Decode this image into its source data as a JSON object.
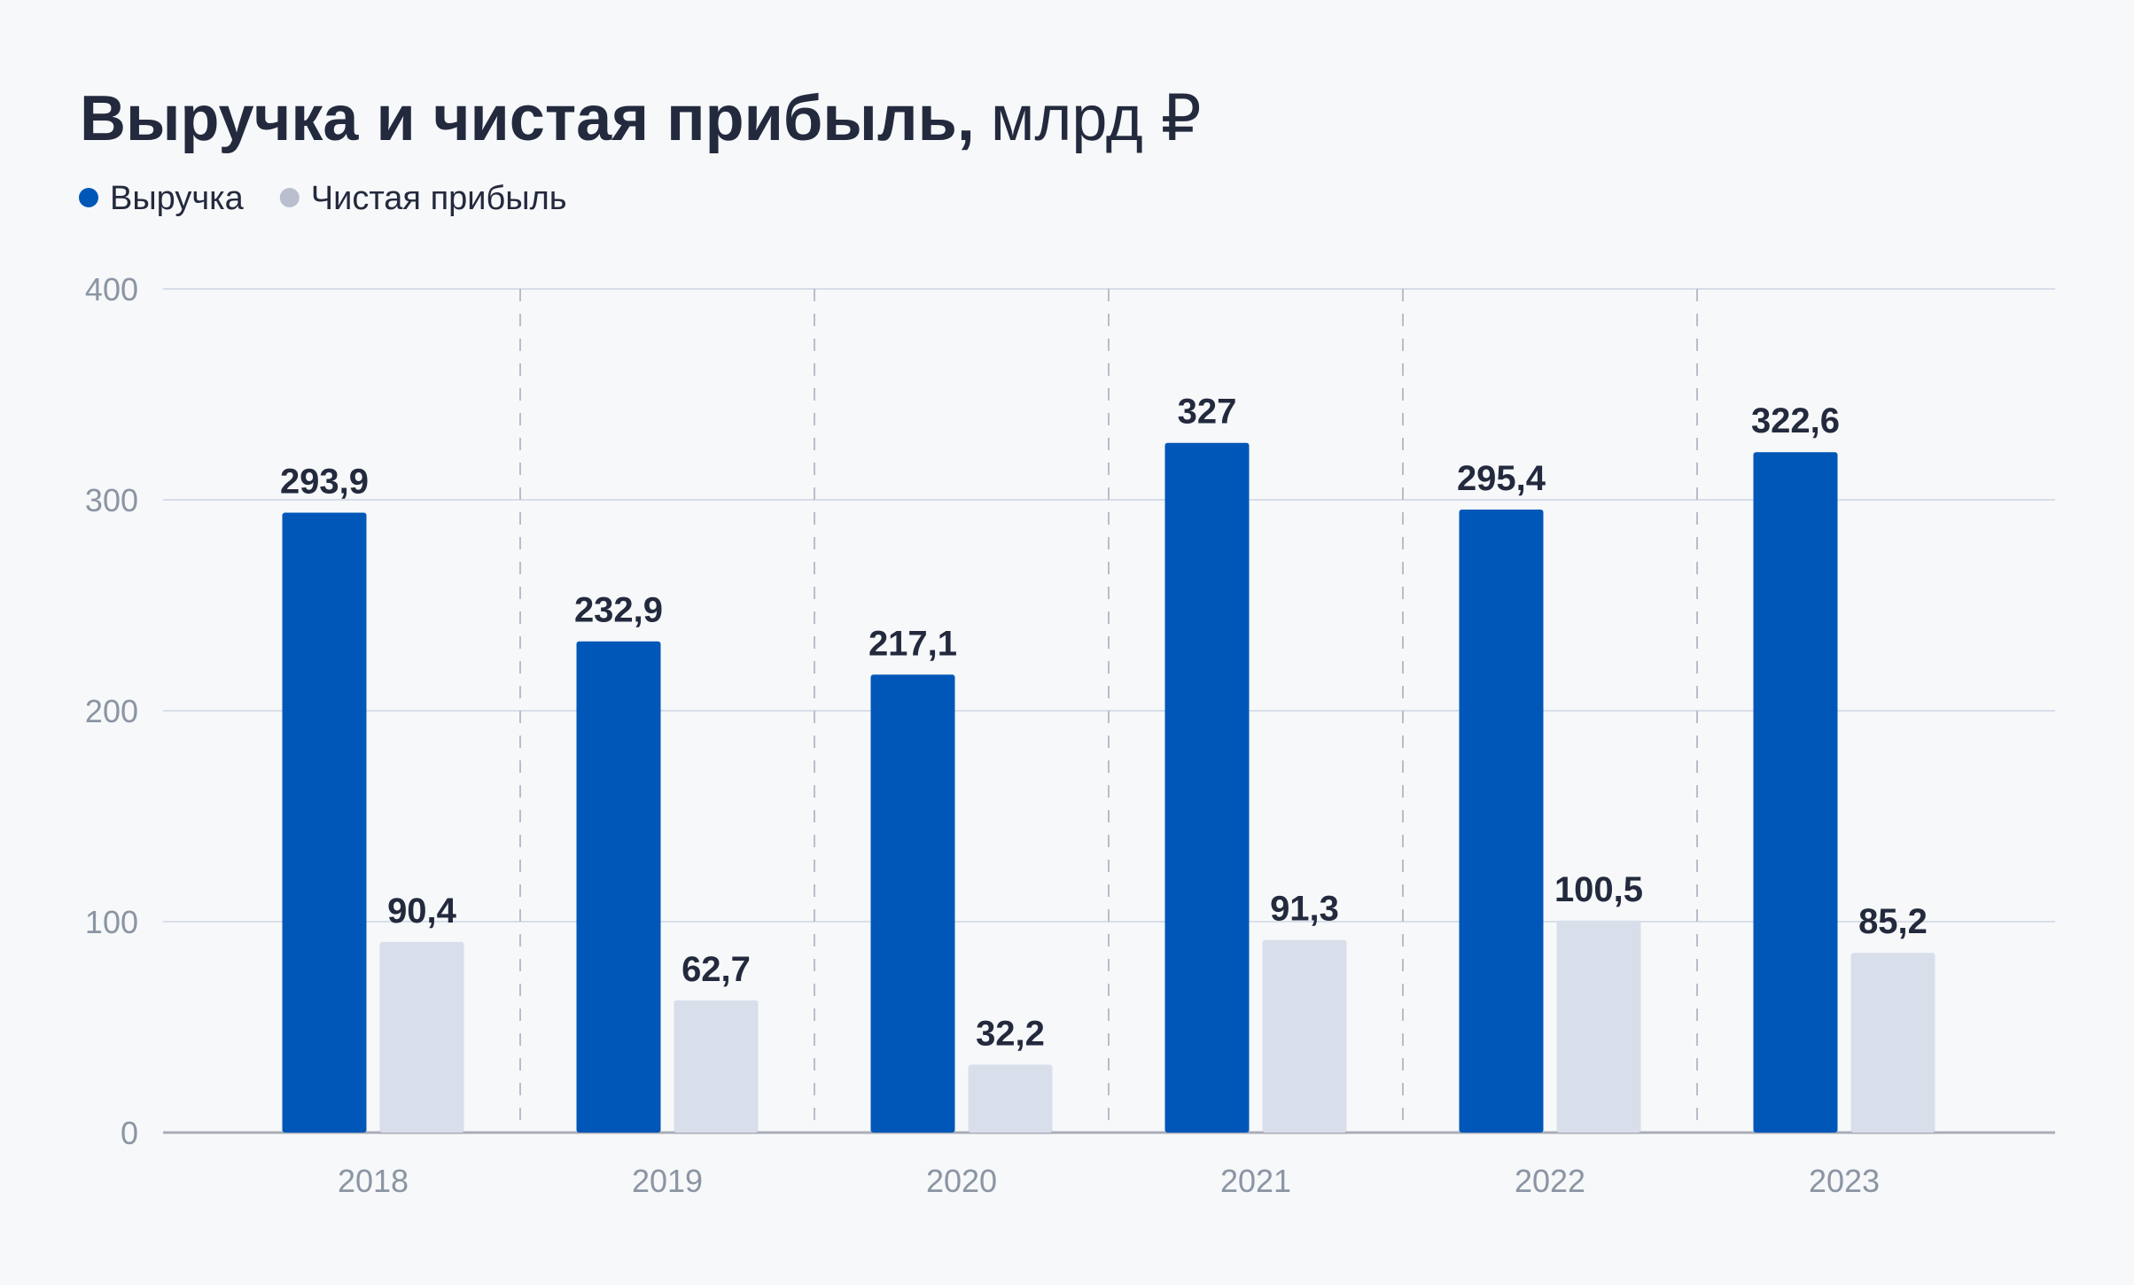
{
  "chart_data": {
    "type": "bar",
    "title": "Выручка и чистая прибыль,",
    "title_unit": "млрд ₽",
    "xlabel": "",
    "ylabel": "",
    "ylim": [
      0,
      400
    ],
    "yticks": [
      "0",
      "100",
      "200",
      "300",
      "400"
    ],
    "ytick_values": [
      0,
      100,
      200,
      300,
      400
    ],
    "grid": true,
    "legend_position": "top-left",
    "categories": [
      "2018",
      "2019",
      "2020",
      "2021",
      "2022",
      "2023"
    ],
    "series": [
      {
        "name": "Выручка",
        "color": "#0057b8",
        "values": [
          293.9,
          232.9,
          217.1,
          327,
          295.4,
          322.6
        ],
        "labels": [
          "293,9",
          "232,9",
          "217,1",
          "327",
          "295,4",
          "322,6"
        ]
      },
      {
        "name": "Чистая прибыль",
        "color": "#d8deea",
        "legend_color": "#b9bfce",
        "values": [
          90.4,
          62.7,
          32.2,
          91.3,
          100.5,
          85.2
        ],
        "labels": [
          "90,4",
          "62,7",
          "32,2",
          "91,3",
          "100,5",
          "85,2"
        ]
      }
    ]
  }
}
